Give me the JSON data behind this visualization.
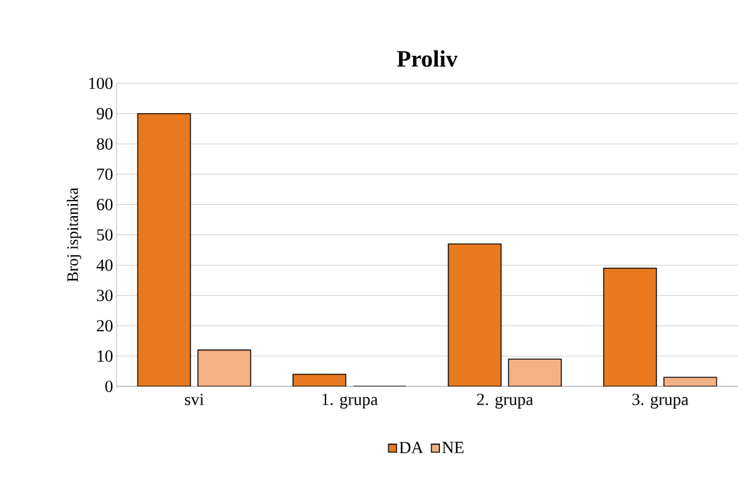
{
  "chart_data": {
    "type": "bar",
    "title": "Proliv",
    "ylabel": "Broj ispitanika",
    "categories": [
      "svi",
      "1. grupa",
      "2. grupa",
      "3. grupa"
    ],
    "series": [
      {
        "name": "DA",
        "color": "#e8791e",
        "values": [
          90,
          4,
          47,
          39
        ]
      },
      {
        "name": "NE",
        "color": "#f4b183",
        "values": [
          12,
          0,
          9,
          3
        ]
      }
    ],
    "ylim": [
      0,
      100
    ],
    "yticks": [
      0,
      10,
      20,
      30,
      40,
      50,
      60,
      70,
      80,
      90,
      100
    ],
    "grid": "y",
    "legend": "bottom"
  }
}
